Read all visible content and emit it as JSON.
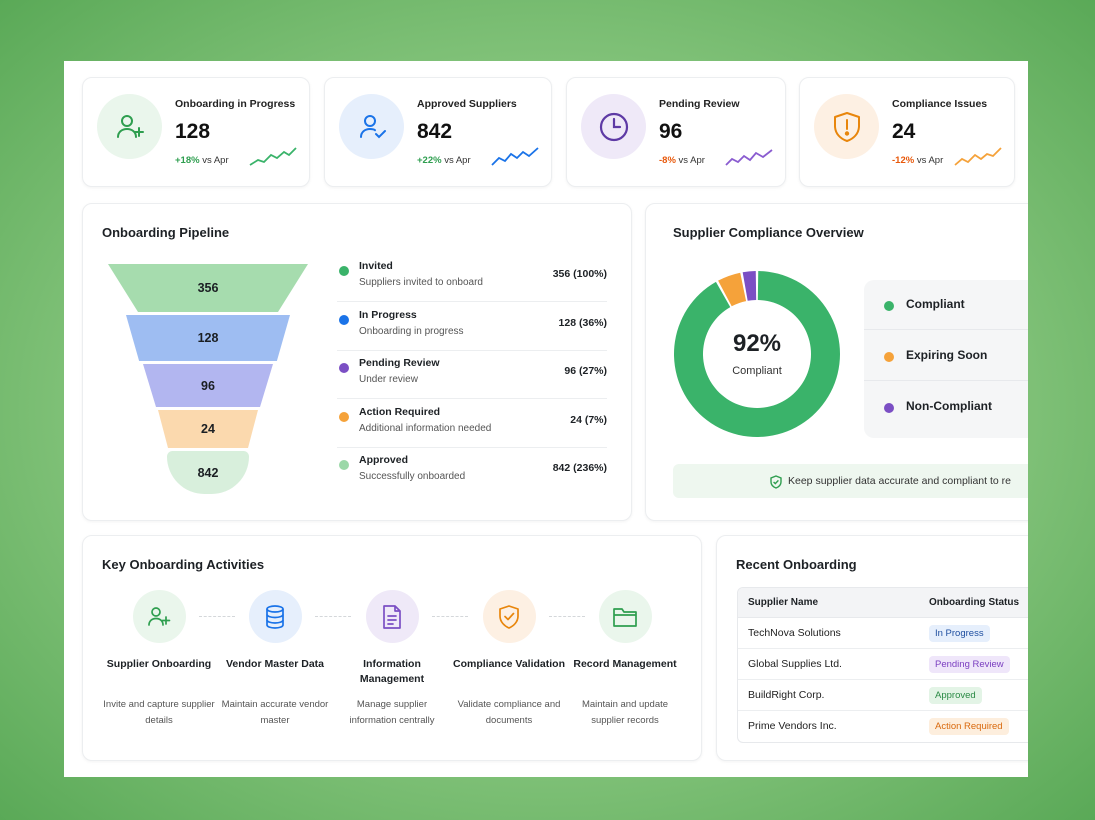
{
  "kpis": [
    {
      "label": "Onboarding in Progress",
      "value": "128",
      "change": "+18%",
      "suffix": "vs Apr",
      "color": "#2e9e4f",
      "icon": "user-plus-icon"
    },
    {
      "label": "Approved Suppliers",
      "value": "842",
      "change": "+22%",
      "suffix": "vs Apr",
      "color": "#2e9e4f",
      "icon": "user-check-icon"
    },
    {
      "label": "Pending Review",
      "value": "96",
      "change": "-8%",
      "suffix": "vs Apr",
      "color": "#e8590c",
      "icon": "clock-icon"
    },
    {
      "label": "Compliance Issues",
      "value": "24",
      "change": "-12%",
      "suffix": "vs Apr",
      "color": "#e8590c",
      "icon": "shield-alert-icon"
    }
  ],
  "pipeline": {
    "title": "Onboarding Pipeline",
    "funnel": [
      {
        "value": "356",
        "color": "#a6dcae"
      },
      {
        "value": "128",
        "color": "#9ebdf2"
      },
      {
        "value": "96",
        "color": "#b2b6f0"
      },
      {
        "value": "24",
        "color": "#fbd9ae"
      },
      {
        "value": "842",
        "color": "#d8efdc"
      }
    ],
    "stages": [
      {
        "name": "Invited",
        "desc": "Suppliers invited to onboard",
        "count": "356 (100%)",
        "color": "#3ab36a"
      },
      {
        "name": "In Progress",
        "desc": "Onboarding in progress",
        "count": "128 (36%)",
        "color": "#1a73e8"
      },
      {
        "name": "Pending Review",
        "desc": "Under review",
        "count": "96 (27%)",
        "color": "#7b4fc4"
      },
      {
        "name": "Action Required",
        "desc": "Additional information needed",
        "count": "24 (7%)",
        "color": "#f5a23a"
      },
      {
        "name": "Approved",
        "desc": "Successfully onboarded",
        "count": "842 (236%)",
        "color": "#9bd8a8"
      }
    ]
  },
  "compliance": {
    "title": "Supplier Compliance Overview",
    "center_value": "92%",
    "center_label": "Compliant",
    "note": "Keep supplier data accurate and compliant to re",
    "legend": [
      {
        "name": "Compliant",
        "color": "#3ab36a",
        "share": 0.92
      },
      {
        "name": "Expiring Soon",
        "color": "#f5a23a",
        "share": 0.05
      },
      {
        "name": "Non-Compliant",
        "color": "#7b4fc4",
        "share": 0.03
      }
    ]
  },
  "activities": {
    "title": "Key Onboarding Activities",
    "items": [
      {
        "name": "Supplier Onboarding",
        "desc": "Invite and capture supplier details",
        "icon": "user-plus-icon",
        "bg": "#eaf6ec",
        "fg": "#2e9e4f"
      },
      {
        "name": "Vendor Master Data",
        "desc": "Maintain accurate vendor master",
        "icon": "database-icon",
        "bg": "#e6effc",
        "fg": "#1a73e8"
      },
      {
        "name": "Information Management",
        "desc": "Manage supplier information centrally",
        "icon": "document-icon",
        "bg": "#efe9f8",
        "fg": "#7b4fc4"
      },
      {
        "name": "Compliance Validation",
        "desc": "Validate compliance and documents",
        "icon": "shield-check-icon",
        "bg": "#fdf0e3",
        "fg": "#e8860c"
      },
      {
        "name": "Record Management",
        "desc": "Maintain and update supplier records",
        "icon": "folder-icon",
        "bg": "#eaf6ec",
        "fg": "#2e9e4f"
      }
    ]
  },
  "recent": {
    "title": "Recent Onboarding",
    "columns": [
      "Supplier Name",
      "Onboarding Status"
    ],
    "rows": [
      {
        "name": "TechNova Solutions",
        "status": "In Progress",
        "bg": "#e6effc",
        "fg": "#1f4fa0"
      },
      {
        "name": "Global Supplies Ltd.",
        "status": "Pending Review",
        "bg": "#efe6fa",
        "fg": "#7b3fc0"
      },
      {
        "name": "BuildRight Corp.",
        "status": "Approved",
        "bg": "#e3f4e6",
        "fg": "#2a8a45"
      },
      {
        "name": "Prime Vendors Inc.",
        "status": "Action Required",
        "bg": "#fdeedd",
        "fg": "#d9690d"
      }
    ]
  }
}
